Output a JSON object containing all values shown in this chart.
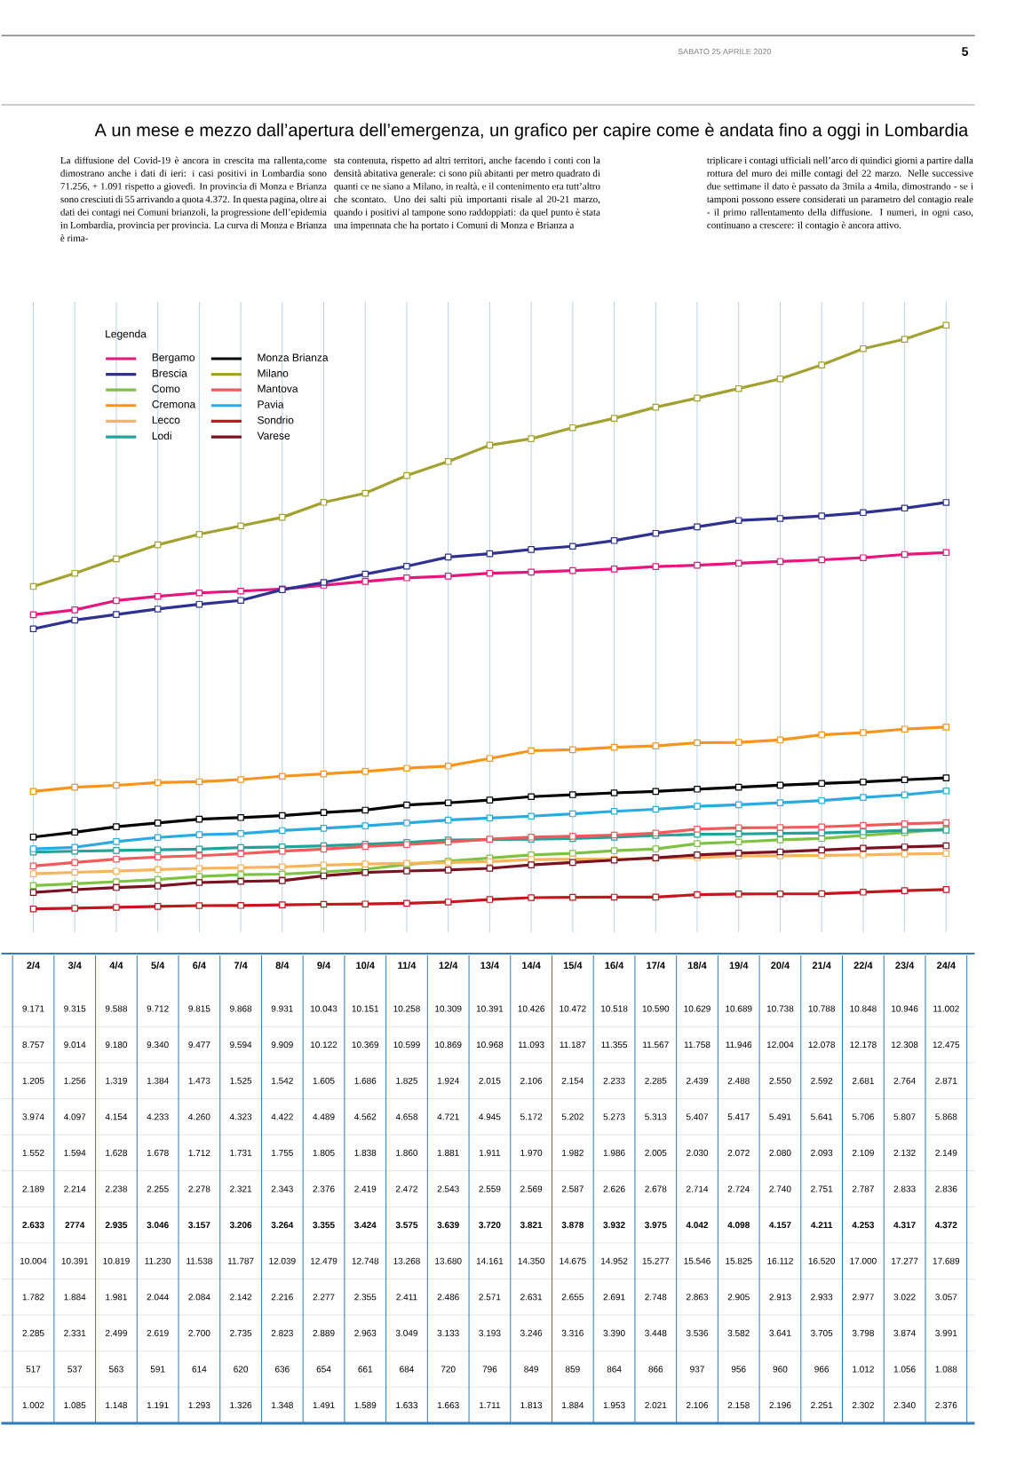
{
  "chart_data": {
    "type": "line",
    "title": "A un mese e mezzo dall’apertura dell’emergenza, un grafico per capire come è andata fino a oggi in Lombardia",
    "legend_title": "Legenda",
    "categories": [
      "2/4",
      "3/4",
      "4/4",
      "5/4",
      "6/4",
      "7/4",
      "8/4",
      "9/4",
      "10/4",
      "11/4",
      "12/4",
      "13/4",
      "14/4",
      "15/4",
      "16/4",
      "17/4",
      "18/4",
      "19/4",
      "20/4",
      "21/4",
      "22/4",
      "23/4",
      "24/4"
    ],
    "series": [
      {
        "name": "Bergamo",
        "color": "#e5177e",
        "values": [
          9171,
          9315,
          9588,
          9712,
          9815,
          9868,
          9931,
          10043,
          10151,
          10258,
          10309,
          10391,
          10426,
          10472,
          10518,
          10590,
          10629,
          10689,
          10738,
          10788,
          10848,
          10946,
          11002
        ],
        "value_labels": [
          "9.171",
          "9.315",
          "9.588",
          "9.712",
          "9.815",
          "9.868",
          "9.931",
          "10.043",
          "10.151",
          "10.258",
          "10.309",
          "10.391",
          "10.426",
          "10.472",
          "10.518",
          "10.590",
          "10.629",
          "10.689",
          "10.738",
          "10.788",
          "10.848",
          "10.946",
          "11.002"
        ]
      },
      {
        "name": "Brescia",
        "color": "#2e3192",
        "values": [
          8757,
          9014,
          9180,
          9340,
          9477,
          9594,
          9909,
          10122,
          10369,
          10599,
          10869,
          10968,
          11093,
          11187,
          11355,
          11567,
          11758,
          11946,
          12004,
          12078,
          12178,
          12308,
          12475
        ],
        "value_labels": [
          "8.757",
          "9.014",
          "9.180",
          "9.340",
          "9.477",
          "9.594",
          "9.909",
          "10.122",
          "10.369",
          "10.599",
          "10.869",
          "10.968",
          "11.093",
          "11.187",
          "11.355",
          "11.567",
          "11.758",
          "11.946",
          "12.004",
          "12.078",
          "12.178",
          "12.308",
          "12.475"
        ]
      },
      {
        "name": "Como",
        "color": "#7dc242",
        "values": [
          1205,
          1256,
          1319,
          1384,
          1473,
          1525,
          1542,
          1605,
          1686,
          1825,
          1924,
          2015,
          2106,
          2154,
          2233,
          2285,
          2439,
          2488,
          2550,
          2592,
          2681,
          2764,
          2871
        ],
        "value_labels": [
          "1.205",
          "1.256",
          "1.319",
          "1.384",
          "1.473",
          "1.525",
          "1.542",
          "1.605",
          "1.686",
          "1.825",
          "1.924",
          "2.015",
          "2.106",
          "2.154",
          "2.233",
          "2.285",
          "2.439",
          "2.488",
          "2.550",
          "2.592",
          "2.681",
          "2.764",
          "2.871"
        ]
      },
      {
        "name": "Cremona",
        "color": "#f7941d",
        "values": [
          3974,
          4097,
          4154,
          4233,
          4260,
          4323,
          4422,
          4489,
          4562,
          4658,
          4721,
          4945,
          5172,
          5202,
          5273,
          5313,
          5407,
          5417,
          5491,
          5641,
          5706,
          5807,
          5868
        ],
        "value_labels": [
          "3.974",
          "4.097",
          "4.154",
          "4.233",
          "4.260",
          "4.323",
          "4.422",
          "4.489",
          "4.562",
          "4.658",
          "4.721",
          "4.945",
          "5.172",
          "5.202",
          "5.273",
          "5.313",
          "5.407",
          "5.417",
          "5.491",
          "5.641",
          "5.706",
          "5.807",
          "5.868"
        ]
      },
      {
        "name": "Lecco",
        "color": "#f9b45a",
        "values": [
          1552,
          1594,
          1628,
          1678,
          1712,
          1731,
          1755,
          1805,
          1838,
          1860,
          1881,
          1911,
          1970,
          1982,
          1986,
          2005,
          2030,
          2072,
          2080,
          2093,
          2109,
          2132,
          2149
        ],
        "value_labels": [
          "1.552",
          "1.594",
          "1.628",
          "1.678",
          "1.712",
          "1.731",
          "1.755",
          "1.805",
          "1.838",
          "1.860",
          "1.881",
          "1.911",
          "1.970",
          "1.982",
          "1.986",
          "2.005",
          "2.030",
          "2.072",
          "2.080",
          "2.093",
          "2.109",
          "2.132",
          "2.149"
        ]
      },
      {
        "name": "Lodi",
        "color": "#22a39a",
        "values": [
          2189,
          2214,
          2238,
          2255,
          2278,
          2321,
          2343,
          2376,
          2419,
          2472,
          2543,
          2559,
          2569,
          2587,
          2626,
          2678,
          2714,
          2724,
          2740,
          2751,
          2787,
          2833,
          2836
        ],
        "value_labels": [
          "2.189",
          "2.214",
          "2.238",
          "2.255",
          "2.278",
          "2.321",
          "2.343",
          "2.376",
          "2.419",
          "2.472",
          "2.543",
          "2.559",
          "2.569",
          "2.587",
          "2.626",
          "2.678",
          "2.714",
          "2.724",
          "2.740",
          "2.751",
          "2.787",
          "2.833",
          "2.836"
        ]
      },
      {
        "name": "Monza Brianza",
        "color": "#000000",
        "values": [
          2633,
          2774,
          2935,
          3046,
          3157,
          3206,
          3264,
          3355,
          3424,
          3575,
          3639,
          3720,
          3821,
          3878,
          3932,
          3975,
          4042,
          4098,
          4157,
          4211,
          4253,
          4317,
          4372
        ],
        "value_labels": [
          "**2.633**",
          "**2774**",
          "**2.935**",
          "**3.046**",
          "**3.157**",
          "**3.206**",
          "**3.264**",
          "**3.355**",
          "**3.424**",
          "**3.575**",
          "**3.639**",
          "**3.720**",
          "**3.821**",
          "**3.878**",
          "**3.932**",
          "**3.975**",
          "**4.042**",
          "**4.098**",
          "**4.157**",
          "**4.211**",
          "**4.253**",
          "**4.317**",
          "**4.372**"
        ]
      },
      {
        "name": "Milano",
        "color": "#a3a130",
        "values": [
          10004,
          10391,
          10819,
          11230,
          11538,
          11787,
          12039,
          12479,
          12748,
          13268,
          13680,
          14161,
          14350,
          14675,
          14952,
          15277,
          15546,
          15825,
          16112,
          16520,
          17000,
          17277,
          17689
        ],
        "value_labels": [
          "10.004",
          "10.391",
          "10.819",
          "11.230",
          "11.538",
          "11.787",
          "12.039",
          "12.479",
          "12.748",
          "13.268",
          "13.680",
          "14.161",
          "14.350",
          "14.675",
          "14.952",
          "15.277",
          "15.546",
          "15.825",
          "16.112",
          "16.520",
          "17.000",
          "17.277",
          "17.689"
        ]
      },
      {
        "name": "Mantova",
        "color": "#f05a5a",
        "values": [
          1782,
          1884,
          1981,
          2044,
          2084,
          2142,
          2216,
          2277,
          2355,
          2411,
          2486,
          2571,
          2631,
          2655,
          2691,
          2748,
          2863,
          2905,
          2913,
          2933,
          2977,
          3022,
          3057
        ],
        "value_labels": [
          "1.782",
          "1.884",
          "1.981",
          "2.044",
          "2.084",
          "2.142",
          "2.216",
          "2.277",
          "2.355",
          "2.411",
          "2.486",
          "2.571",
          "2.631",
          "2.655",
          "2.691",
          "2.748",
          "2.863",
          "2.905",
          "2.913",
          "2.933",
          "2.977",
          "3.022",
          "3.057"
        ]
      },
      {
        "name": "Pavia",
        "color": "#29abe2",
        "values": [
          2285,
          2331,
          2499,
          2619,
          2700,
          2735,
          2823,
          2889,
          2963,
          3049,
          3133,
          3193,
          3246,
          3316,
          3390,
          3448,
          3536,
          3582,
          3641,
          3705,
          3798,
          3874,
          3991
        ],
        "value_labels": [
          "2.285",
          "2.331",
          "2.499",
          "2.619",
          "2.700",
          "2.735",
          "2.823",
          "2.889",
          "2.963",
          "3.049",
          "3.133",
          "3.193",
          "3.246",
          "3.316",
          "3.390",
          "3.448",
          "3.536",
          "3.582",
          "3.641",
          "3.705",
          "3.798",
          "3.874",
          "3.991"
        ]
      },
      {
        "name": "Sondrio",
        "color": "#c4161c",
        "values": [
          517,
          537,
          563,
          591,
          614,
          620,
          636,
          654,
          661,
          684,
          720,
          796,
          849,
          859,
          864,
          866,
          937,
          956,
          960,
          966,
          1012,
          1056,
          1088
        ],
        "value_labels": [
          "517",
          "537",
          "563",
          "591",
          "614",
          "620",
          "636",
          "654",
          "661",
          "684",
          "720",
          "796",
          "849",
          "859",
          "864",
          "866",
          "937",
          "956",
          "960",
          "966",
          "1.012",
          "1.056",
          "1.088"
        ]
      },
      {
        "name": "Varese",
        "color": "#7b1120",
        "values": [
          1002,
          1085,
          1148,
          1191,
          1293,
          1326,
          1348,
          1491,
          1589,
          1633,
          1663,
          1711,
          1813,
          1884,
          1953,
          2021,
          2106,
          2158,
          2196,
          2251,
          2302,
          2340,
          2376
        ],
        "value_labels": [
          "1.002",
          "1.085",
          "1.148",
          "1.191",
          "1.293",
          "1.326",
          "1.348",
          "1.491",
          "1.589",
          "1.633",
          "1.663",
          "1.711",
          "1.813",
          "1.884",
          "1.953",
          "2.021",
          "2.106",
          "2.158",
          "2.196",
          "2.251",
          "2.302",
          "2.340",
          "2.376"
        ]
      }
    ],
    "marker": "square",
    "line_style": "solid",
    "grid": "x",
    "legend": "top left",
    "annotations": [
      "SABATO 25 APRILE 2020",
      "5",
      "La diffusione del Covid-19 è ancora in crescita ma rallenta,come dimostrano anche i dati di ieri: i casi positivi in Lombardia sono 71.256, + 1.091 rispetto a giovedì. In provincia di Monza e Brianza sono cresciuti di 55 arrivando a quota 4.372. In questa pagina, oltre ai dati dei contagi nei Comuni brianzoli, la progressione dell’epidemia in Lombardia, provincia per provincia. La curva di Monza e Brianza è rima-",
      "sta contenuta, rispetto ad altri territori, anche facendo i conti con la densità abitativa generale: ci sono più abitanti per metro quadrato di quanti ce ne siano a Milano, in realtà, e il contenimento era tutt’altro che scontato. Uno dei salti più importanti risale al 20-21 marzo, quando i positivi al tampone sono raddoppiati: da quel punto è stata una impennata che ha portato i Comuni di Monza e Brianza a",
      "triplicare i contagi ufficiali nell’arco di quindici giorni a partire dalla rottura del muro dei mille contagi del 22 marzo. Nelle successive due settimane il dato è passato da 3mila a 4mila, dimostrando - se i tamponi possono essere considerati un parametro del contagio reale - il primo rallentamento della diffusione. I numeri, in ogni caso, continuano a crescere: il contagio è ancora attivo."
    ]
  }
}
